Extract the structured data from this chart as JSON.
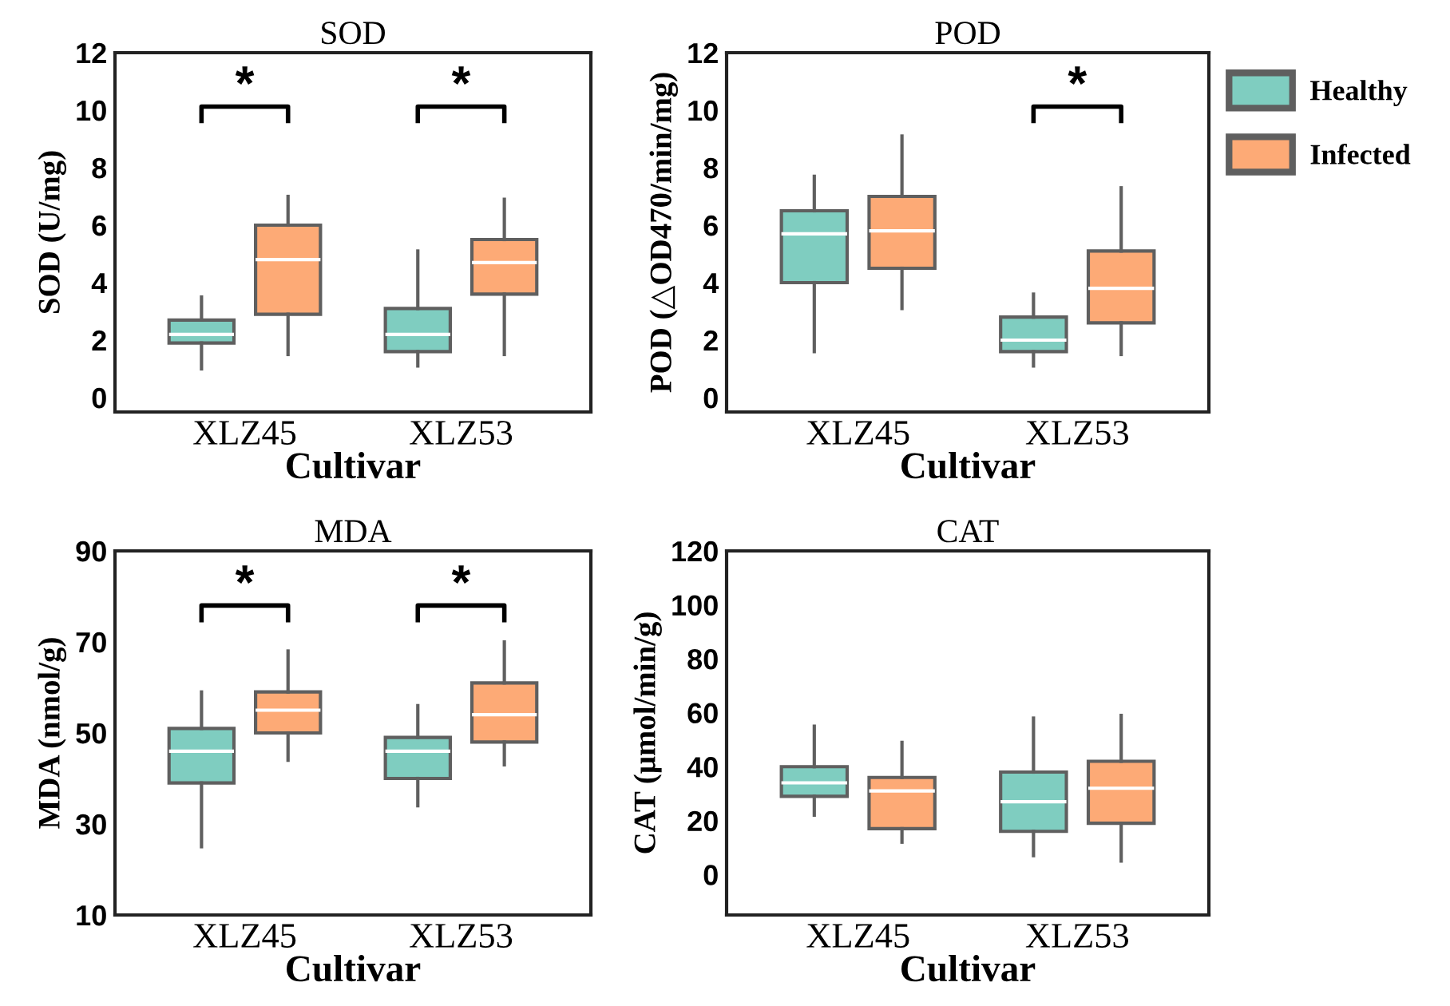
{
  "chart_data": [
    {
      "type": "box",
      "title": "SOD",
      "xlabel": "Cultivar",
      "ylabel": "SOD (U/mg)",
      "categories": [
        "XLZ45",
        "XLZ53"
      ],
      "ylim": [
        -0.5,
        12
      ],
      "yticks": [
        0,
        2,
        4,
        6,
        8,
        10,
        12
      ],
      "grid": false,
      "series": [
        {
          "color": "#7fcdc0",
          "boxes": [
            {
              "low": 1.0,
              "q1": 1.9,
              "median": 2.2,
              "q3": 2.7,
              "high": 3.5
            },
            {
              "low": 1.1,
              "q1": 1.6,
              "median": 2.2,
              "q3": 3.1,
              "high": 5.1
            }
          ]
        },
        {
          "color": "#fdaa76",
          "boxes": [
            {
              "low": 1.5,
              "q1": 2.9,
              "median": 4.8,
              "q3": 6.0,
              "high": 7.0
            },
            {
              "low": 1.5,
              "q1": 3.6,
              "median": 4.7,
              "q3": 5.5,
              "high": 6.9
            }
          ]
        }
      ],
      "annotations": [
        "*",
        "*"
      ]
    },
    {
      "type": "box",
      "title": "POD",
      "xlabel": "Cultivar",
      "ylabel": "POD (△OD470/min/mg)",
      "categories": [
        "XLZ45",
        "XLZ53"
      ],
      "ylim": [
        -0.5,
        12
      ],
      "yticks": [
        0,
        2,
        4,
        6,
        8,
        10,
        12
      ],
      "grid": false,
      "legend": "right",
      "series": [
        {
          "name": "Healthy",
          "color": "#7fcdc0",
          "boxes": [
            {
              "low": 1.6,
              "q1": 4.0,
              "median": 5.7,
              "q3": 6.5,
              "high": 7.7
            },
            {
              "low": 1.1,
              "q1": 1.6,
              "median": 2.0,
              "q3": 2.8,
              "high": 3.6
            }
          ]
        },
        {
          "name": "Infected",
          "color": "#fdaa76",
          "boxes": [
            {
              "low": 3.1,
              "q1": 4.5,
              "median": 5.8,
              "q3": 7.0,
              "high": 9.1
            },
            {
              "low": 1.5,
              "q1": 2.6,
              "median": 3.8,
              "q3": 5.1,
              "high": 7.3
            }
          ]
        }
      ],
      "annotations": [
        "*"
      ]
    },
    {
      "type": "box",
      "title": "MDA",
      "xlabel": "Cultivar",
      "ylabel": "MDA (nmol/g)",
      "categories": [
        "XLZ45",
        "XLZ53"
      ],
      "ylim": [
        10,
        90
      ],
      "yticks": [
        10,
        30,
        50,
        70,
        90
      ],
      "grid": false,
      "series": [
        {
          "color": "#7fcdc0",
          "boxes": [
            {
              "low": 25,
              "q1": 39,
              "median": 46,
              "q3": 51,
              "high": 59
            },
            {
              "low": 34,
              "q1": 40,
              "median": 46,
              "q3": 49,
              "high": 56
            }
          ]
        },
        {
          "color": "#fdaa76",
          "boxes": [
            {
              "low": 44,
              "q1": 50,
              "median": 55,
              "q3": 59,
              "high": 68
            },
            {
              "low": 43,
              "q1": 48,
              "median": 54,
              "q3": 61,
              "high": 70
            }
          ]
        }
      ],
      "annotations": [
        "*",
        "*"
      ]
    },
    {
      "type": "box",
      "title": "CAT",
      "xlabel": "Cultivar",
      "ylabel": "CAT (μmol/min/g)",
      "categories": [
        "XLZ45",
        "XLZ53"
      ],
      "ylim": [
        -15,
        120
      ],
      "yticks": [
        0,
        20,
        40,
        60,
        80,
        100,
        120
      ],
      "grid": false,
      "series": [
        {
          "color": "#7fcdc0",
          "boxes": [
            {
              "low": 22,
              "q1": 29,
              "median": 34,
              "q3": 40,
              "high": 55
            },
            {
              "low": 7,
              "q1": 16,
              "median": 27,
              "q3": 38,
              "high": 58
            }
          ]
        },
        {
          "color": "#fdaa76",
          "boxes": [
            {
              "low": 12,
              "q1": 17,
              "median": 31,
              "q3": 36,
              "high": 49
            },
            {
              "low": 5,
              "q1": 19,
              "median": 32,
              "q3": 42,
              "high": 59
            }
          ]
        }
      ]
    }
  ]
}
